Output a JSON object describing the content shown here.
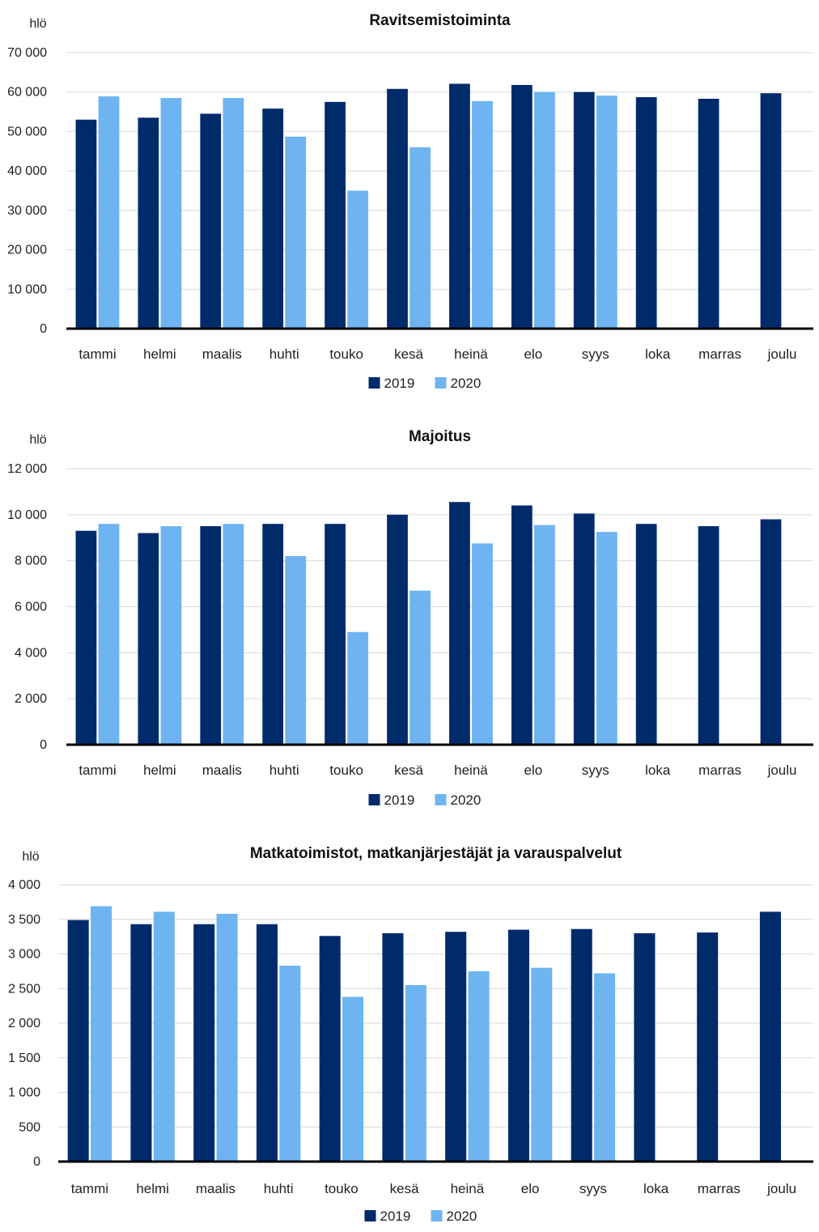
{
  "colors": {
    "s2019": "#002B6B",
    "s2020": "#6EB4F0",
    "grid": "#D9D9D9",
    "axis": "#000000"
  },
  "chart_data": [
    {
      "type": "bar",
      "title": "Ravitsemistoiminta",
      "ylabel": "hlö",
      "categories": [
        "tammi",
        "helmi",
        "maalis",
        "huhti",
        "touko",
        "kesä",
        "heinä",
        "elo",
        "syys",
        "loka",
        "marras",
        "joulu"
      ],
      "series": [
        {
          "name": "2019",
          "values": [
            53000,
            53500,
            54500,
            55800,
            57500,
            60800,
            62100,
            61800,
            60000,
            58700,
            58300,
            59700
          ]
        },
        {
          "name": "2020",
          "values": [
            58900,
            58500,
            58500,
            48700,
            35000,
            46000,
            57700,
            60000,
            59100,
            null,
            null,
            null
          ]
        }
      ],
      "ylim": [
        0,
        70000
      ],
      "yticks": [
        0,
        10000,
        20000,
        30000,
        40000,
        50000,
        60000,
        70000
      ],
      "ytick_labels": [
        "0",
        "10 000",
        "20 000",
        "30 000",
        "40 000",
        "50 000",
        "60 000",
        "70 000"
      ],
      "grid": true,
      "legend": "bottom"
    },
    {
      "type": "bar",
      "title": "Majoitus",
      "ylabel": "hlö",
      "categories": [
        "tammi",
        "helmi",
        "maalis",
        "huhti",
        "touko",
        "kesä",
        "heinä",
        "elo",
        "syys",
        "loka",
        "marras",
        "joulu"
      ],
      "series": [
        {
          "name": "2019",
          "values": [
            9300,
            9200,
            9500,
            9600,
            9600,
            10000,
            10550,
            10400,
            10050,
            9600,
            9500,
            9800
          ]
        },
        {
          "name": "2020",
          "values": [
            9600,
            9500,
            9600,
            8200,
            4900,
            6700,
            8750,
            9550,
            9250,
            null,
            null,
            null
          ]
        }
      ],
      "ylim": [
        0,
        12000
      ],
      "yticks": [
        0,
        2000,
        4000,
        6000,
        8000,
        10000,
        12000
      ],
      "ytick_labels": [
        "0",
        "2 000",
        "4 000",
        "6 000",
        "8 000",
        "10 000",
        "12 000"
      ],
      "grid": true,
      "legend": "bottom"
    },
    {
      "type": "bar",
      "title": "Matkatoimistot, matkanjärjestäjät ja varauspalvelut",
      "ylabel": "hlö",
      "categories": [
        "tammi",
        "helmi",
        "maalis",
        "huhti",
        "touko",
        "kesä",
        "heinä",
        "elo",
        "syys",
        "loka",
        "marras",
        "joulu"
      ],
      "series": [
        {
          "name": "2019",
          "values": [
            3490,
            3430,
            3430,
            3430,
            3260,
            3300,
            3320,
            3350,
            3360,
            3300,
            3310,
            3610
          ]
        },
        {
          "name": "2020",
          "values": [
            3690,
            3610,
            3580,
            2830,
            2380,
            2550,
            2750,
            2800,
            2720,
            null,
            null,
            null
          ]
        }
      ],
      "ylim": [
        0,
        4000
      ],
      "yticks": [
        0,
        500,
        1000,
        1500,
        2000,
        2500,
        3000,
        3500,
        4000
      ],
      "ytick_labels": [
        "0",
        "500",
        "1 000",
        "1 500",
        "2 000",
        "2 500",
        "3 000",
        "3 500",
        "4 000"
      ],
      "grid": true,
      "legend": "bottom"
    }
  ]
}
